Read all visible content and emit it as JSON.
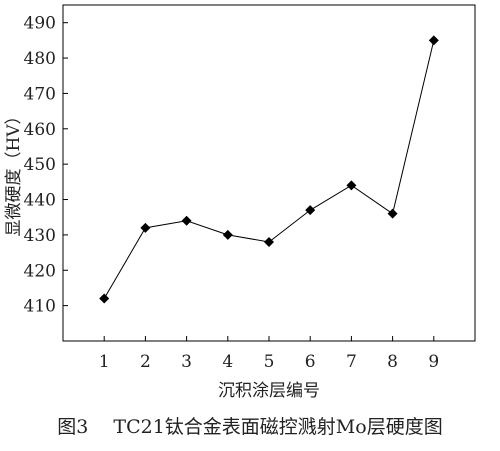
{
  "chart_data": {
    "type": "line",
    "x": [
      1,
      2,
      3,
      4,
      5,
      6,
      7,
      8,
      9
    ],
    "series": [
      {
        "values": [
          412,
          432,
          434,
          430,
          428,
          437,
          444,
          436,
          485
        ]
      }
    ],
    "xlabel": "沉积涂层编号",
    "ylabel": "显微硬度（HV）",
    "xlim": [
      0,
      10
    ],
    "ylim": [
      400,
      495
    ],
    "xticks": [
      1,
      2,
      3,
      4,
      5,
      6,
      7,
      8,
      9
    ],
    "yticks": [
      410,
      420,
      430,
      440,
      450,
      460,
      470,
      480,
      490
    ],
    "marker": "diamond",
    "grid": false,
    "line_color": "#000000"
  },
  "caption": "图3　 TC21钛合金表面磁控溅射Mo层硬度图"
}
